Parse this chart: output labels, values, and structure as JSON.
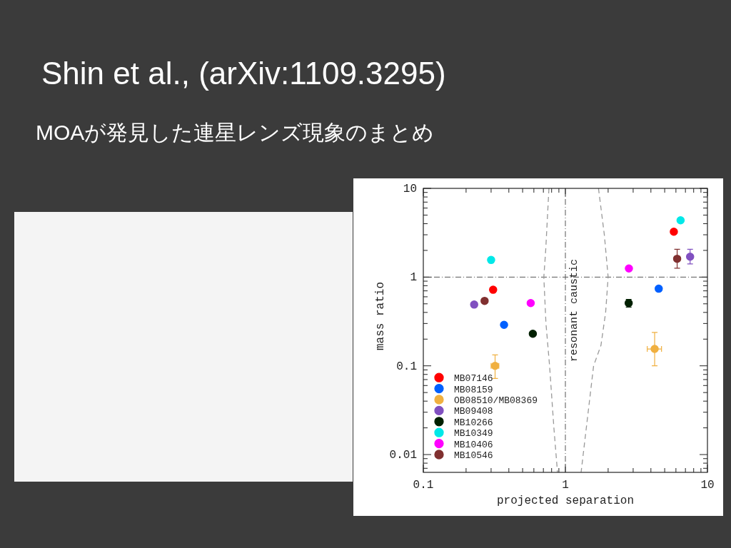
{
  "chart_data": {
    "type": "scatter",
    "title": "Shin et al., (arXiv:1109.3295)",
    "subtitle": "MOAが発見した連星レンズ現象のまとめ",
    "xlabel": "projected separation",
    "ylabel": "mass ratio",
    "log": "xy",
    "xlim": [
      0.1,
      10
    ],
    "ylim": [
      0.0063,
      10
    ],
    "xticks": [
      0.1,
      {
        "value": 0.2,
        "label": null
      },
      {
        "value": 0.3,
        "label": null
      },
      {
        "value": 0.4,
        "label": null
      },
      {
        "value": 0.5,
        "label": null
      },
      {
        "value": 0.6,
        "label": null
      },
      {
        "value": 0.7,
        "label": null
      },
      {
        "value": 0.8,
        "label": null
      },
      {
        "value": 0.9,
        "label": null
      },
      1,
      {
        "value": 2,
        "label": null
      },
      {
        "value": 3,
        "label": null
      },
      {
        "value": 4,
        "label": null
      },
      {
        "value": 5,
        "label": null
      },
      {
        "value": 6,
        "label": null
      },
      {
        "value": 7,
        "label": null
      },
      {
        "value": 8,
        "label": null
      },
      {
        "value": 9,
        "label": null
      },
      10
    ],
    "yticks": [
      {
        "value": 0.007,
        "label": null
      },
      {
        "value": 0.008,
        "label": null
      },
      {
        "value": 0.009,
        "label": null
      },
      0.01,
      {
        "value": 0.02,
        "label": null
      },
      {
        "value": 0.03,
        "label": null
      },
      {
        "value": 0.04,
        "label": null
      },
      {
        "value": 0.05,
        "label": null
      },
      {
        "value": 0.06,
        "label": null
      },
      {
        "value": 0.07,
        "label": null
      },
      {
        "value": 0.08,
        "label": null
      },
      {
        "value": 0.09,
        "label": null
      },
      0.1,
      {
        "value": 0.2,
        "label": null
      },
      {
        "value": 0.3,
        "label": null
      },
      {
        "value": 0.4,
        "label": null
      },
      {
        "value": 0.5,
        "label": null
      },
      {
        "value": 0.6,
        "label": null
      },
      {
        "value": 0.7,
        "label": null
      },
      {
        "value": 0.8,
        "label": null
      },
      {
        "value": 0.9,
        "label": null
      },
      1,
      {
        "value": 2,
        "label": null
      },
      {
        "value": 3,
        "label": null
      },
      {
        "value": 4,
        "label": null
      },
      {
        "value": 5,
        "label": null
      },
      {
        "value": 6,
        "label": null
      },
      {
        "value": 7,
        "label": null
      },
      {
        "value": 8,
        "label": null
      },
      {
        "value": 9,
        "label": null
      },
      10
    ],
    "marker": "circle",
    "legend": "bottom left",
    "ref_lines": [
      {
        "axis": "x",
        "value": 1,
        "label": "resonant caustic"
      },
      {
        "axis": "y",
        "value": 1
      }
    ],
    "series": [
      {
        "name": "MB07146",
        "color": "#ff0000",
        "x": [
          0.31,
          5.8
        ],
        "values": [
          0.72,
          3.25
        ]
      },
      {
        "name": "MB08159",
        "color": "#0060ff",
        "x": [
          0.37,
          4.54
        ],
        "values": [
          0.29,
          0.74
        ]
      },
      {
        "name": "OB08510/MB08369",
        "color": "#f0b040",
        "x": [
          0.32,
          4.25
        ],
        "values": [
          0.1,
          0.155
        ],
        "errors": [
          [
            0.072,
            0.133
          ],
          [
            0.1,
            0.238
          ]
        ],
        "xerrors": [
          [
            0.3,
            0.34
          ],
          [
            3.77,
            4.75
          ]
        ]
      },
      {
        "name": "MB09408",
        "color": "#8050c0",
        "x": [
          0.228,
          7.55
        ],
        "values": [
          0.49,
          1.7
        ],
        "errors": [
          null,
          [
            1.41,
            2.06
          ]
        ]
      },
      {
        "name": "MB10266",
        "color": "#002000",
        "x": [
          0.59,
          2.79
        ],
        "values": [
          0.23,
          0.51
        ],
        "errors": [
          null,
          [
            0.46,
            0.56
          ]
        ]
      },
      {
        "name": "MB10349",
        "color": "#00e8e8",
        "x": [
          0.3,
          6.47
        ],
        "values": [
          1.56,
          4.37
        ]
      },
      {
        "name": "MB10406",
        "color": "#ff00ff",
        "x": [
          0.57,
          2.8
        ],
        "values": [
          0.51,
          1.25
        ]
      },
      {
        "name": "MB10546",
        "color": "#803030",
        "x": [
          0.27,
          6.12
        ],
        "values": [
          0.54,
          1.61
        ],
        "errors": [
          null,
          [
            1.26,
            2.06
          ]
        ]
      },
      {
        "type": "line",
        "color": "#999999",
        "line_style": "dashed",
        "marker": "none",
        "x": [
          0.766,
          0.727,
          0.705,
          0.73,
          0.774,
          0.83,
          0.88
        ],
        "values": [
          10,
          2.02,
          1,
          0.3,
          0.1,
          0.02,
          0.0063
        ]
      },
      {
        "type": "line",
        "color": "#999999",
        "line_style": "dashed",
        "marker": "none",
        "x": [
          1.71,
          1.88,
          2.0,
          1.92,
          1.78,
          1.58,
          1.29
        ],
        "values": [
          10,
          3,
          1,
          0.4,
          0.17,
          0.1,
          0.0063
        ]
      }
    ]
  }
}
